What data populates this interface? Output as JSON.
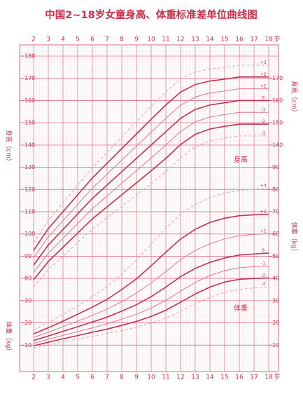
{
  "chart_data": {
    "type": "line",
    "title": "中国2~18岁女童身高、体重标准差单位曲线图",
    "x": [
      2,
      3,
      4,
      5,
      6,
      7,
      8,
      9,
      10,
      11,
      12,
      13,
      14,
      15,
      16,
      17,
      18
    ],
    "x_unit": "岁",
    "xlim": [
      2,
      18
    ],
    "xticks": [
      2,
      3,
      4,
      5,
      6,
      7,
      8,
      9,
      10,
      11,
      12,
      13,
      14,
      15,
      16,
      17,
      18
    ],
    "ylim": [
      40,
      180
    ],
    "yticks": [
      80,
      90,
      100,
      110,
      120,
      130,
      140,
      150,
      160,
      170,
      180
    ],
    "yticks_right": [
      140,
      150,
      160,
      170
    ],
    "y2lim": [
      0,
      140
    ],
    "y2ticks": [
      10,
      20,
      30,
      40,
      50,
      60,
      70,
      80,
      90
    ],
    "y2ticks_left": [
      10,
      20,
      30
    ],
    "y_label": "身高（cm）",
    "y2_label": "体重（kg）",
    "height_label": "身高",
    "weight_label": "体重",
    "grid": true,
    "series": [
      {
        "name": "+3",
        "color": "#e8a0b0",
        "dashed": true,
        "axis": "y",
        "values": [
          95.9,
          106.1,
          114,
          121.9,
          129.8,
          136.7,
          143.6,
          150.5,
          157.4,
          164,
          169.7,
          172.8,
          174.2,
          174.9,
          175.9,
          175.9,
          175.9
        ]
      },
      {
        "name": "+2",
        "color": "#c4304c",
        "dashed": false,
        "axis": "y",
        "values": [
          92.6,
          102.4,
          110,
          117.6,
          125.2,
          131.8,
          138.4,
          145,
          151.6,
          158,
          163.8,
          167.2,
          168.8,
          169.6,
          170.6,
          170.6,
          170.6
        ]
      },
      {
        "name": "+1",
        "color": "#e07890",
        "dashed": false,
        "axis": "y",
        "values": [
          89.3,
          98.7,
          106,
          113.3,
          120.6,
          126.9,
          133.2,
          139.5,
          145.8,
          152,
          157.9,
          161.6,
          163.4,
          164.3,
          165.3,
          165.3,
          165.3
        ]
      },
      {
        "name": "0",
        "color": "#c4304c",
        "dashed": false,
        "axis": "y",
        "values": [
          86,
          95,
          102,
          109,
          116,
          122,
          128,
          134,
          140,
          146,
          152,
          156,
          158,
          159,
          160,
          160,
          160
        ]
      },
      {
        "name": "-1",
        "color": "#e07890",
        "dashed": false,
        "axis": "y",
        "values": [
          82.7,
          91.3,
          98,
          104.7,
          111.4,
          117.1,
          122.8,
          128.5,
          134.2,
          140,
          146.1,
          150.4,
          152.6,
          153.7,
          154.7,
          154.7,
          154.7
        ]
      },
      {
        "name": "-2",
        "color": "#c4304c",
        "dashed": false,
        "axis": "y",
        "values": [
          79.4,
          87.6,
          94,
          100.4,
          106.8,
          112.2,
          117.6,
          123,
          128.4,
          134,
          140.2,
          144.8,
          147.2,
          148.4,
          149.4,
          149.4,
          149.4
        ]
      },
      {
        "name": "-3",
        "color": "#e8a0b0",
        "dashed": true,
        "axis": "y",
        "values": [
          76.1,
          83.9,
          90,
          96.1,
          102.2,
          107.3,
          112.4,
          117.5,
          122.6,
          128,
          134.3,
          139.2,
          141.8,
          143.1,
          144.1,
          144.1,
          144.1
        ]
      },
      {
        "name": "+3",
        "color": "#e8a0b0",
        "dashed": true,
        "axis": "y2",
        "values": [
          16.9,
          20.1,
          23.8,
          27.6,
          31.8,
          36.4,
          42,
          48.3,
          55.5,
          62.5,
          68.8,
          73.2,
          76.4,
          78.4,
          79.6,
          80.1,
          80.5
        ]
      },
      {
        "name": "+2",
        "color": "#c4304c",
        "dashed": false,
        "axis": "y2",
        "values": [
          15.1,
          17.8,
          20.8,
          23.9,
          27.1,
          30.6,
          35,
          39.8,
          45.7,
          51.8,
          57.7,
          62.1,
          65.2,
          67.1,
          68.2,
          68.6,
          68.9
        ]
      },
      {
        "name": "+1",
        "color": "#e07890",
        "dashed": false,
        "axis": "y2",
        "values": [
          13.5,
          15.8,
          18.3,
          20.8,
          23.4,
          26.2,
          29.6,
          33.4,
          38,
          43.1,
          48.4,
          52.6,
          55.6,
          57.8,
          59.2,
          59.8,
          60.1
        ]
      },
      {
        "name": "0",
        "color": "#c4304c",
        "dashed": false,
        "axis": "y2",
        "values": [
          12.1,
          14.1,
          16.2,
          18.3,
          20.4,
          22.6,
          25.3,
          28.2,
          31.8,
          36.1,
          40.8,
          44.5,
          47.2,
          49.2,
          50.5,
          51,
          51.4
        ]
      },
      {
        "name": "-1",
        "color": "#e07890",
        "dashed": false,
        "axis": "y2",
        "values": [
          10.8,
          12.6,
          14.4,
          16.1,
          17.8,
          19.6,
          21.7,
          23.9,
          26.7,
          30.1,
          34.3,
          38.2,
          41.3,
          43.5,
          44.8,
          45.3,
          45.5
        ]
      },
      {
        "name": "-2",
        "color": "#c4304c",
        "dashed": false,
        "axis": "y2",
        "values": [
          9.7,
          11.3,
          12.8,
          14.3,
          15.8,
          17.2,
          18.9,
          20.7,
          22.9,
          25.7,
          29.3,
          33,
          36.1,
          38.4,
          39.6,
          40,
          40.2
        ]
      },
      {
        "name": "-3",
        "color": "#e8a0b0",
        "dashed": true,
        "axis": "y2",
        "values": [
          8.7,
          10.1,
          11.4,
          12.7,
          14,
          15.2,
          16.6,
          18.1,
          19.9,
          22.2,
          25.1,
          28.5,
          31.5,
          33.8,
          35.1,
          35.7,
          36.3
        ]
      }
    ]
  }
}
